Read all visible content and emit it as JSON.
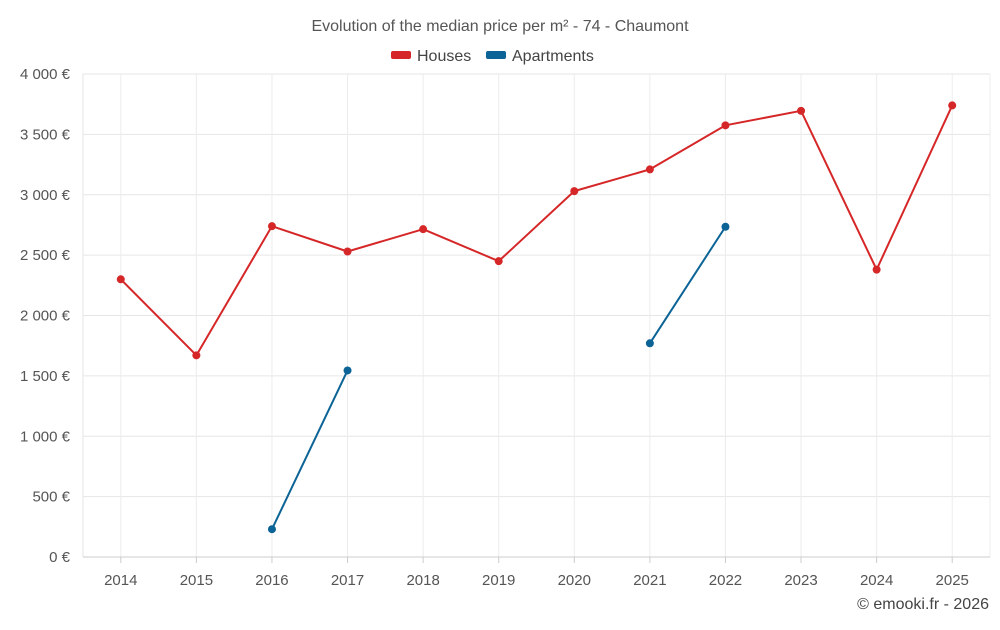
{
  "chart_data": {
    "type": "line",
    "title": "Evolution of the median price per m² - 74 - Chaumont",
    "xlabel": "",
    "ylabel": "",
    "categories": [
      "2014",
      "2015",
      "2016",
      "2017",
      "2018",
      "2019",
      "2020",
      "2021",
      "2022",
      "2023",
      "2024",
      "2025"
    ],
    "ylim": [
      0,
      4000
    ],
    "yticks": [
      0,
      500,
      1000,
      1500,
      2000,
      2500,
      3000,
      3500,
      4000
    ],
    "ytick_labels": [
      "0 €",
      "500 €",
      "1 000 €",
      "1 500 €",
      "2 000 €",
      "2 500 €",
      "3 000 €",
      "3 500 €",
      "4 000 €"
    ],
    "grid": true,
    "legend_position": "top-center",
    "series": [
      {
        "name": "Houses",
        "color": "#d62728",
        "values": [
          2300,
          1670,
          2740,
          2530,
          2715,
          2450,
          3030,
          3210,
          3575,
          3695,
          2380,
          3740
        ]
      },
      {
        "name": "Apartments",
        "color": "#0b6396",
        "values": [
          null,
          null,
          230,
          1545,
          null,
          null,
          null,
          1770,
          2735,
          null,
          null,
          null
        ]
      }
    ]
  },
  "credit": "© emooki.fr - 2026"
}
